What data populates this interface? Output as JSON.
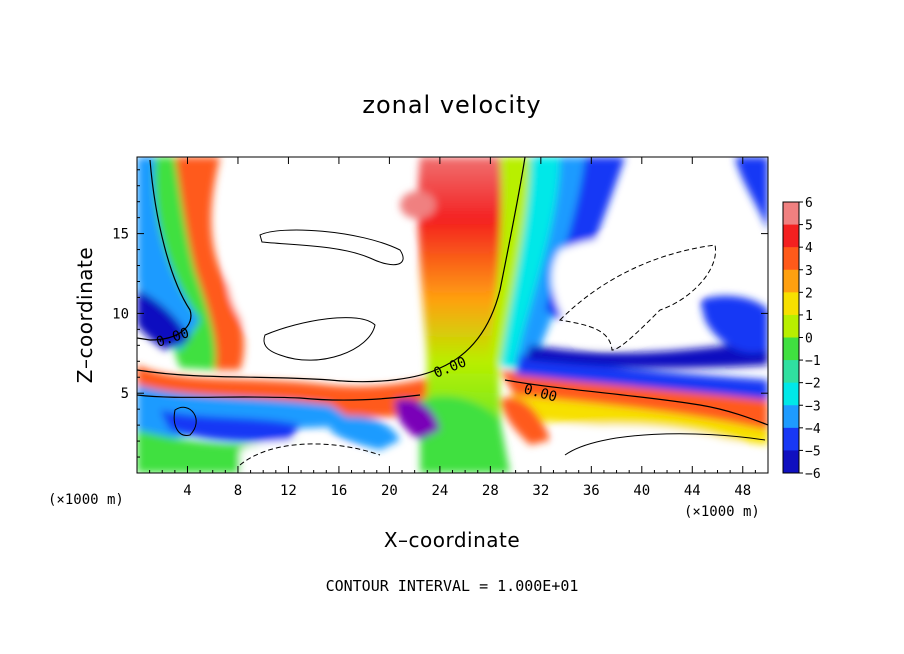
{
  "chart_data": {
    "type": "heatmap",
    "title": "zonal velocity",
    "xlabel": "X–coordinate",
    "ylabel": "Z–coordinate",
    "x_unit": "(×1000 m)",
    "y_unit": "(×1000 m)",
    "xlim": [
      0,
      50
    ],
    "ylim": [
      0,
      19.8
    ],
    "x_ticks": [
      4,
      8,
      12,
      16,
      20,
      24,
      28,
      32,
      36,
      40,
      44,
      48
    ],
    "y_ticks": [
      5,
      10,
      15
    ],
    "colorbar": {
      "ticks": [
        6,
        5,
        4,
        3,
        2,
        1,
        0,
        -1,
        -2,
        -3,
        -4,
        -5,
        -6
      ],
      "colors": [
        "#f08080",
        "#f42020",
        "#ff5a1a",
        "#ffa010",
        "#f7e000",
        "#b8ef00",
        "#40e040",
        "#30e0a0",
        "#00e8e8",
        "#1e9bff",
        "#1838f5",
        "#1010c0",
        "#7a00b8"
      ]
    },
    "contour_labels": [
      "0.00",
      "0.00",
      "0.00"
    ],
    "note": "CONTOUR INTERVAL = 1.000E+01",
    "grid": false,
    "legend": "colorbar-right"
  }
}
